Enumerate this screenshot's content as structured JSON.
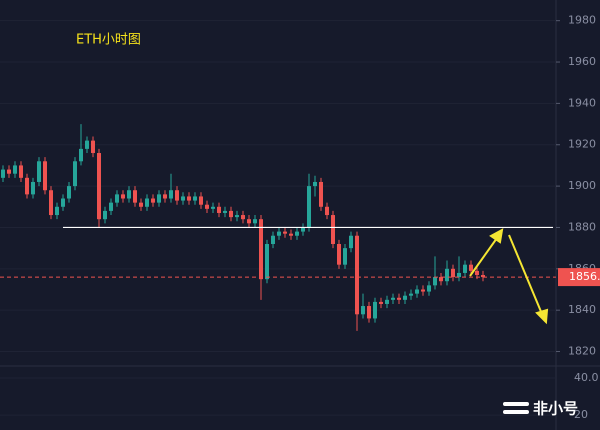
{
  "chart_data": {
    "type": "candlestick",
    "title": "ETH小时图",
    "up_color": "#26a69a",
    "down_color": "#ef5350",
    "open": [
      1904,
      1908,
      1906,
      1910,
      1904,
      1896,
      1902,
      1912,
      1898,
      1886,
      1890,
      1894,
      1900,
      1912,
      1918,
      1922,
      1916,
      1884,
      1888,
      1892,
      1896,
      1894,
      1898,
      1892,
      1890,
      1894,
      1892,
      1896,
      1894,
      1898,
      1893,
      1895,
      1893,
      1895,
      1891,
      1889,
      1890,
      1887,
      1888,
      1885,
      1886,
      1884,
      1882,
      1884,
      1855,
      1872,
      1876,
      1878,
      1877,
      1876,
      1878,
      1880,
      1900,
      1902,
      1890,
      1886,
      1872,
      1862,
      1870,
      1876,
      1838,
      1842,
      1836,
      1844,
      1843,
      1845,
      1846,
      1845,
      1847,
      1848,
      1850,
      1849,
      1852,
      1856,
      1854,
      1860,
      1856,
      1858,
      1862,
      1859,
      1857
    ],
    "high": [
      1910,
      1910,
      1912,
      1912,
      1906,
      1904,
      1914,
      1914,
      1900,
      1892,
      1896,
      1902,
      1914,
      1930,
      1924,
      1924,
      1918,
      1890,
      1894,
      1898,
      1898,
      1900,
      1900,
      1894,
      1896,
      1896,
      1898,
      1898,
      1906,
      1900,
      1897,
      1897,
      1897,
      1897,
      1893,
      1892,
      1892,
      1890,
      1890,
      1888,
      1888,
      1886,
      1886,
      1886,
      1874,
      1878,
      1880,
      1880,
      1879,
      1880,
      1882,
      1906,
      1905,
      1904,
      1892,
      1888,
      1874,
      1872,
      1878,
      1878,
      1848,
      1844,
      1846,
      1846,
      1847,
      1848,
      1848,
      1849,
      1850,
      1852,
      1852,
      1854,
      1866,
      1858,
      1864,
      1862,
      1866,
      1864,
      1864,
      1861,
      1859
    ],
    "low": [
      1902,
      1904,
      1904,
      1902,
      1894,
      1894,
      1900,
      1896,
      1884,
      1884,
      1888,
      1892,
      1898,
      1910,
      1916,
      1914,
      1880,
      1882,
      1886,
      1890,
      1892,
      1892,
      1890,
      1888,
      1888,
      1890,
      1890,
      1892,
      1892,
      1891,
      1891,
      1891,
      1891,
      1889,
      1887,
      1887,
      1885,
      1885,
      1883,
      1883,
      1882,
      1880,
      1880,
      1845,
      1853,
      1870,
      1874,
      1875,
      1874,
      1874,
      1876,
      1878,
      1895,
      1888,
      1884,
      1870,
      1860,
      1860,
      1868,
      1830,
      1836,
      1834,
      1834,
      1841,
      1841,
      1843,
      1843,
      1843,
      1845,
      1846,
      1847,
      1847,
      1850,
      1852,
      1852,
      1854,
      1854,
      1856,
      1857,
      1855,
      1854
    ],
    "close": [
      1908,
      1906,
      1910,
      1904,
      1896,
      1902,
      1912,
      1898,
      1886,
      1890,
      1894,
      1900,
      1912,
      1918,
      1922,
      1916,
      1884,
      1888,
      1892,
      1896,
      1894,
      1898,
      1892,
      1890,
      1894,
      1892,
      1896,
      1894,
      1898,
      1893,
      1895,
      1893,
      1895,
      1891,
      1889,
      1890,
      1887,
      1888,
      1885,
      1886,
      1884,
      1882,
      1884,
      1855,
      1872,
      1876,
      1878,
      1877,
      1876,
      1878,
      1880,
      1900,
      1902,
      1890,
      1886,
      1872,
      1862,
      1870,
      1876,
      1838,
      1842,
      1836,
      1844,
      1843,
      1845,
      1846,
      1845,
      1847,
      1848,
      1850,
      1849,
      1852,
      1856,
      1854,
      1860,
      1856,
      1858,
      1862,
      1859,
      1857,
      1856
    ],
    "ylim": [
      1813,
      1990
    ],
    "yticks": [
      1820,
      1840,
      1860,
      1880,
      1900,
      1920,
      1940,
      1960,
      1980
    ],
    "level_line": {
      "value": 1880,
      "color": "#ffffff"
    },
    "last_price": {
      "value": 1856,
      "label": "1856.",
      "color": "#ef5350"
    },
    "volume_ylim": [
      12,
      46.5
    ],
    "volume_yticks": [
      {
        "value": 40,
        "label": "40.0"
      },
      20
    ],
    "watermark": "非小号"
  }
}
